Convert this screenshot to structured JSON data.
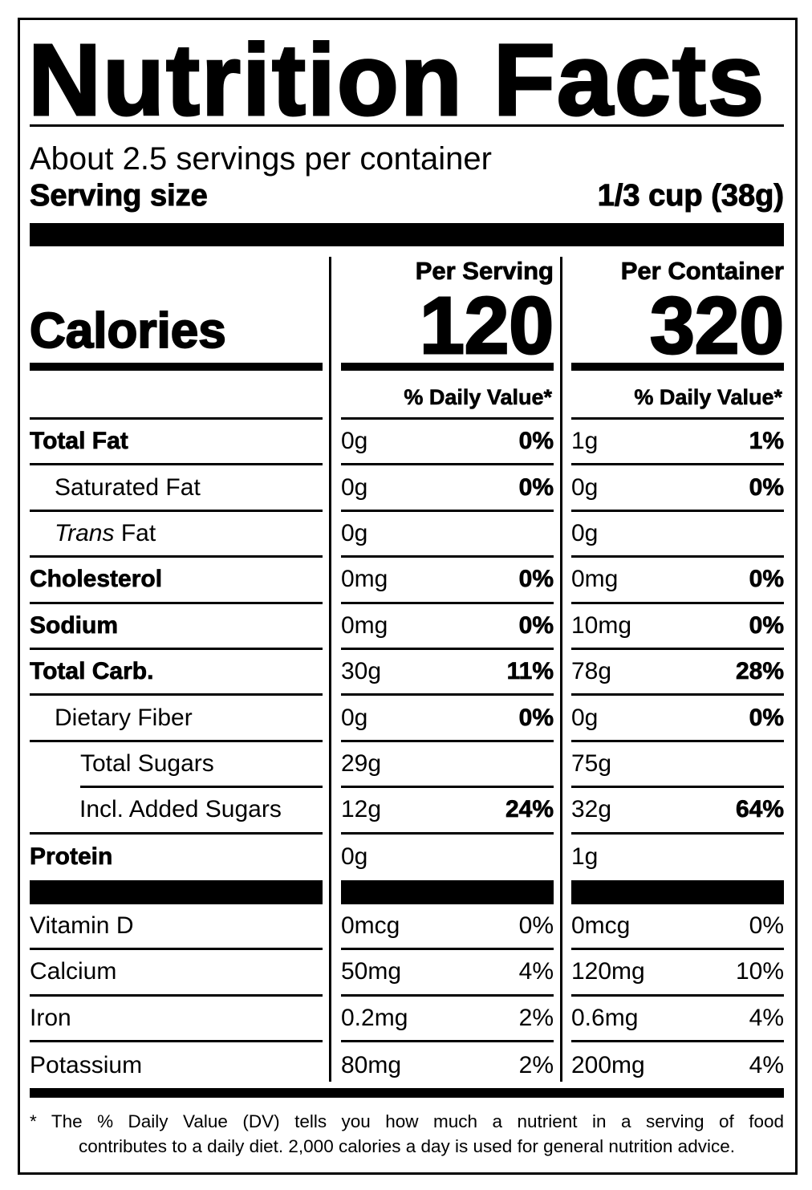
{
  "title": "Nutrition Facts",
  "servings": "About 2.5 servings per container",
  "serving_size": {
    "label": "Serving size",
    "value": "1/3 cup (38g)"
  },
  "columns": [
    "Per Serving",
    "Per Container"
  ],
  "calories": {
    "label": "Calories",
    "values": [
      "120",
      "320"
    ]
  },
  "daily_value_headers": [
    "% Daily Value*",
    "% Daily Value*"
  ],
  "nutrients": [
    {
      "label": "Total Fat",
      "serving": [
        "0g",
        "0%"
      ],
      "container": [
        "1g",
        "1%"
      ]
    },
    {
      "label": "Saturated Fat",
      "serving": [
        "0g",
        "0%"
      ],
      "container": [
        "0g",
        "0%"
      ]
    },
    {
      "label_italic": "Trans",
      "label": "Fat",
      "serving": [
        "0g"
      ],
      "container": [
        "0g"
      ]
    },
    {
      "label": "Cholesterol",
      "serving": [
        "0mg",
        "0%"
      ],
      "container": [
        "0mg",
        "0%"
      ]
    },
    {
      "label": "Sodium",
      "serving": [
        "0mg",
        "0%"
      ],
      "container": [
        "10mg",
        "0%"
      ]
    },
    {
      "label": "Total Carb.",
      "serving": [
        "30g",
        "11%"
      ],
      "container": [
        "78g",
        "28%"
      ]
    },
    {
      "label": "Dietary Fiber",
      "serving": [
        "0g",
        "0%"
      ],
      "container": [
        "0g",
        "0%"
      ]
    },
    {
      "label": "Total Sugars",
      "serving": [
        "29g"
      ],
      "container": [
        "75g"
      ]
    },
    {
      "label": "Incl. Added Sugars",
      "serving": [
        "12g",
        "24%"
      ],
      "container": [
        "32g",
        "64%"
      ]
    },
    {
      "label": "Protein",
      "serving": [
        "0g"
      ],
      "container": [
        "1g"
      ]
    }
  ],
  "vitamins": [
    {
      "label": "Vitamin D",
      "serving": [
        "0mcg",
        "0%"
      ],
      "container": [
        "0mcg",
        "0%"
      ]
    },
    {
      "label": "Calcium",
      "serving": [
        "50mg",
        "4%"
      ],
      "container": [
        "120mg",
        "10%"
      ]
    },
    {
      "label": "Iron",
      "serving": [
        "0.2mg",
        "2%"
      ],
      "container": [
        "0.6mg",
        "4%"
      ]
    },
    {
      "label": "Potassium",
      "serving": [
        "80mg",
        "2%"
      ],
      "container": [
        "200mg",
        "4%"
      ]
    }
  ],
  "footnote": {
    "mark": "*",
    "line1": "The % Daily Value (DV) tells you how much a nutrient in a serving of food",
    "line2": "contributes to a daily diet. 2,000 calories a day is used for general nutrition advice."
  }
}
